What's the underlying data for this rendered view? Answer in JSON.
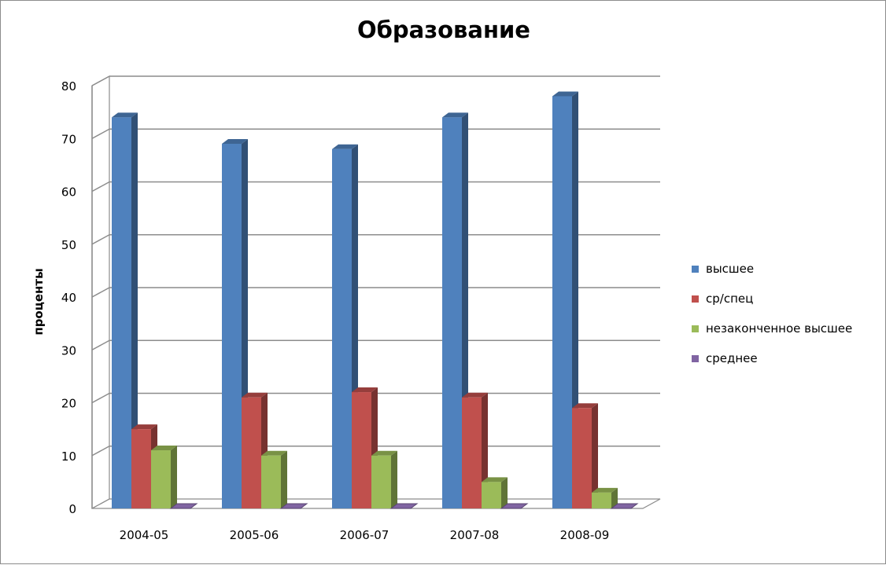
{
  "chart_data": {
    "type": "bar",
    "title": "Образование",
    "xlabel": "",
    "ylabel": "проценты",
    "ylim": [
      0,
      80
    ],
    "yticks": [
      0,
      10,
      20,
      30,
      40,
      50,
      60,
      70,
      80
    ],
    "categories": [
      "2004-05",
      "2005-06",
      "2006-07",
      "2007-08",
      "2008-09"
    ],
    "series": [
      {
        "name": "высшее",
        "color": "#4F81BD",
        "values": [
          74,
          69,
          68,
          74,
          78
        ]
      },
      {
        "name": "ср/спец",
        "color": "#C0504D",
        "values": [
          15,
          21,
          22,
          21,
          19
        ]
      },
      {
        "name": "незаконченное высшее",
        "color": "#9BBB59",
        "values": [
          11,
          10,
          10,
          5,
          3
        ]
      },
      {
        "name": "среднее",
        "color": "#8064A2",
        "values": [
          0,
          0,
          0,
          0,
          0
        ]
      }
    ],
    "grid": true,
    "legend_position": "right",
    "style": "3d-clustered-column"
  }
}
